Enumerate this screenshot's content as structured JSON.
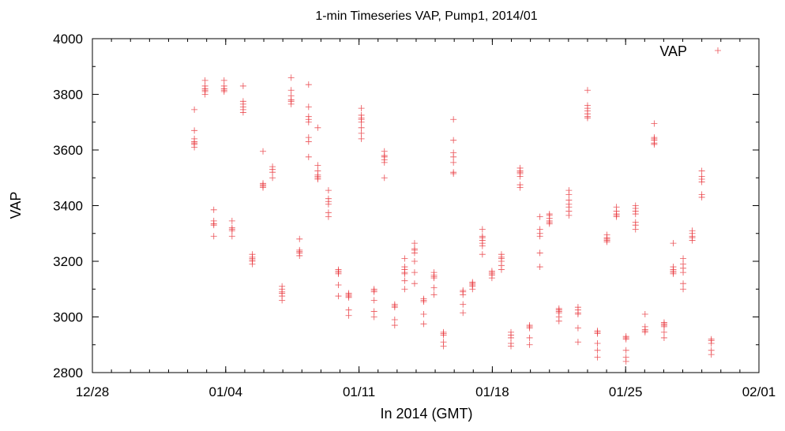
{
  "chart_data": {
    "type": "scatter",
    "title": "1-min Timeseries VAP, Pump1, 2014/01",
    "xlabel": "In 2014 (GMT)",
    "ylabel": "VAP",
    "ylim": [
      2800,
      4000
    ],
    "y_ticks": [
      "2800",
      "3000",
      "3200",
      "3400",
      "3600",
      "3800",
      "4000"
    ],
    "x_start_date": "2013-12-28",
    "x_end_date": "2014-02-01",
    "x_ticks": [
      {
        "date": "2013-12-28",
        "label": "12/28"
      },
      {
        "date": "2014-01-04",
        "label": "01/04"
      },
      {
        "date": "2014-01-11",
        "label": "01/11"
      },
      {
        "date": "2014-01-18",
        "label": "01/18"
      },
      {
        "date": "2014-01-25",
        "label": "01/25"
      },
      {
        "date": "2014-02-01",
        "label": "02/01"
      }
    ],
    "legend": {
      "label": "VAP",
      "position": "top-right",
      "marker": "+"
    },
    "grid": false,
    "colors": {
      "series": "#e8343a"
    },
    "series": [
      {
        "name": "VAP",
        "clusters": [
          {
            "date": "2014-01-02T08:30",
            "values": [
              3610,
              3620,
              3625,
              3630,
              3640,
              3670,
              3745
            ]
          },
          {
            "date": "2014-01-02T22:00",
            "values": [
              3800,
              3810,
              3815,
              3820,
              3830,
              3850
            ]
          },
          {
            "date": "2014-01-03T09:00",
            "values": [
              3290,
              3330,
              3335,
              3345,
              3385
            ]
          },
          {
            "date": "2014-01-03T22:00",
            "values": [
              3810,
              3815,
              3820,
              3830,
              3850
            ]
          },
          {
            "date": "2014-01-04T08:00",
            "values": [
              3290,
              3310,
              3315,
              3320,
              3345
            ]
          },
          {
            "date": "2014-01-04T22:00",
            "values": [
              3735,
              3745,
              3755,
              3765,
              3775,
              3830
            ]
          },
          {
            "date": "2014-01-05T09:30",
            "values": [
              3190,
              3200,
              3205,
              3210,
              3215,
              3225
            ]
          },
          {
            "date": "2014-01-05T23:00",
            "values": [
              3465,
              3470,
              3475,
              3480,
              3595
            ]
          },
          {
            "date": "2014-01-06T11:00",
            "values": [
              3500,
              3520,
              3530,
              3540
            ]
          },
          {
            "date": "2014-01-06T23:00",
            "values": [
              3060,
              3075,
              3085,
              3090,
              3100,
              3110
            ]
          },
          {
            "date": "2014-01-07T10:30",
            "values": [
              3765,
              3775,
              3780,
              3795,
              3815,
              3860
            ]
          },
          {
            "date": "2014-01-07T21:00",
            "values": [
              3220,
              3230,
              3235,
              3240,
              3280
            ]
          },
          {
            "date": "2014-01-08T08:30",
            "values": [
              3575,
              3630,
              3645,
              3700,
              3710,
              3720,
              3755,
              3835
            ]
          },
          {
            "date": "2014-01-08T20:00",
            "values": [
              3495,
              3500,
              3505,
              3510,
              3525,
              3545,
              3680
            ]
          },
          {
            "date": "2014-01-09T09:30",
            "values": [
              3360,
              3375,
              3405,
              3415,
              3425,
              3455
            ]
          },
          {
            "date": "2014-01-09T22:00",
            "values": [
              3075,
              3115,
              3155,
              3160,
              3165,
              3170
            ]
          },
          {
            "date": "2014-01-10T11:00",
            "values": [
              3005,
              3025,
              3070,
              3075,
              3080,
              3085
            ]
          },
          {
            "date": "2014-01-11T03:00",
            "values": [
              3640,
              3660,
              3680,
              3700,
              3710,
              3715,
              3725,
              3750
            ]
          },
          {
            "date": "2014-01-11T19:00",
            "values": [
              3000,
              3020,
              3060,
              3090,
              3095,
              3100
            ]
          },
          {
            "date": "2014-01-12T08:00",
            "values": [
              3500,
              3555,
              3565,
              3575,
              3580,
              3595
            ]
          },
          {
            "date": "2014-01-12T21:00",
            "values": [
              2970,
              2990,
              3035,
              3040,
              3045
            ]
          },
          {
            "date": "2014-01-13T09:30",
            "values": [
              3100,
              3130,
              3155,
              3160,
              3170,
              3180,
              3210
            ]
          },
          {
            "date": "2014-01-13T22:00",
            "values": [
              3120,
              3160,
              3200,
              3230,
              3240,
              3245,
              3265
            ]
          },
          {
            "date": "2014-01-14T09:30",
            "values": [
              2975,
              3010,
              3055,
              3060,
              3065
            ]
          },
          {
            "date": "2014-01-14T22:30",
            "values": [
              3080,
              3105,
              3140,
              3145,
              3150,
              3160
            ]
          },
          {
            "date": "2014-01-15T10:30",
            "values": [
              2895,
              2910,
              2935,
              2940,
              2945
            ]
          },
          {
            "date": "2014-01-15T23:00",
            "values": [
              3515,
              3520,
              3555,
              3575,
              3590,
              3635,
              3710
            ]
          },
          {
            "date": "2014-01-16T11:00",
            "values": [
              3015,
              3045,
              3080,
              3090,
              3095
            ]
          },
          {
            "date": "2014-01-16T23:00",
            "values": [
              3100,
              3110,
              3115,
              3120,
              3125
            ]
          },
          {
            "date": "2014-01-17T11:30",
            "values": [
              3225,
              3255,
              3265,
              3275,
              3285,
              3290,
              3315
            ]
          },
          {
            "date": "2014-01-17T23:30",
            "values": [
              3140,
              3150,
              3155,
              3160,
              3165
            ]
          },
          {
            "date": "2014-01-18T11:30",
            "values": [
              3170,
              3185,
              3200,
              3210,
              3215,
              3225
            ]
          },
          {
            "date": "2014-01-18T23:30",
            "values": [
              2895,
              2905,
              2925,
              2935,
              2945
            ]
          },
          {
            "date": "2014-01-19T11:00",
            "values": [
              3465,
              3475,
              3505,
              3515,
              3520,
              3525,
              3535
            ]
          },
          {
            "date": "2014-01-19T23:00",
            "values": [
              2900,
              2925,
              2960,
              2965,
              2970
            ]
          },
          {
            "date": "2014-01-20T12:00",
            "values": [
              3180,
              3230,
              3290,
              3300,
              3315,
              3360
            ]
          },
          {
            "date": "2014-01-21T00:00",
            "values": [
              3335,
              3340,
              3345,
              3355,
              3365,
              3370
            ]
          },
          {
            "date": "2014-01-21T12:00",
            "values": [
              2985,
              3000,
              3015,
              3020,
              3025,
              3030
            ]
          },
          {
            "date": "2014-01-22T00:30",
            "values": [
              3365,
              3380,
              3395,
              3405,
              3420,
              3440,
              3455
            ]
          },
          {
            "date": "2014-01-22T12:00",
            "values": [
              2910,
              2960,
              3010,
              3015,
              3025,
              3035
            ]
          },
          {
            "date": "2014-01-23T00:00",
            "values": [
              3715,
              3720,
              3730,
              3740,
              3750,
              3760,
              3815
            ]
          },
          {
            "date": "2014-01-23T12:30",
            "values": [
              2855,
              2880,
              2905,
              2940,
              2945,
              2950
            ]
          },
          {
            "date": "2014-01-24T00:30",
            "values": [
              3270,
              3275,
              3280,
              3285,
              3295
            ]
          },
          {
            "date": "2014-01-24T12:30",
            "values": [
              3360,
              3365,
              3370,
              3380,
              3395
            ]
          },
          {
            "date": "2014-01-25T00:30",
            "values": [
              2840,
              2855,
              2880,
              2920,
              2925,
              2930
            ]
          },
          {
            "date": "2014-01-25T12:30",
            "values": [
              3315,
              3330,
              3340,
              3370,
              3380,
              3390,
              3400
            ]
          },
          {
            "date": "2014-01-26T00:30",
            "values": [
              2945,
              2950,
              2955,
              2965,
              3010
            ]
          },
          {
            "date": "2014-01-26T12:00",
            "values": [
              3620,
              3625,
              3635,
              3640,
              3645,
              3695
            ]
          },
          {
            "date": "2014-01-27T00:30",
            "values": [
              2925,
              2945,
              2965,
              2970,
              2975,
              2980
            ]
          },
          {
            "date": "2014-01-27T12:00",
            "values": [
              3155,
              3160,
              3165,
              3170,
              3180,
              3265
            ]
          },
          {
            "date": "2014-01-28T00:30",
            "values": [
              3100,
              3120,
              3160,
              3175,
              3190,
              3210
            ]
          },
          {
            "date": "2014-01-28T12:00",
            "values": [
              3275,
              3285,
              3290,
              3300,
              3310
            ]
          },
          {
            "date": "2014-01-29T00:00",
            "values": [
              3430,
              3440,
              3485,
              3495,
              3505,
              3525
            ]
          },
          {
            "date": "2014-01-29T12:00",
            "values": [
              2865,
              2880,
              2905,
              2915,
              2920
            ]
          }
        ]
      }
    ]
  }
}
